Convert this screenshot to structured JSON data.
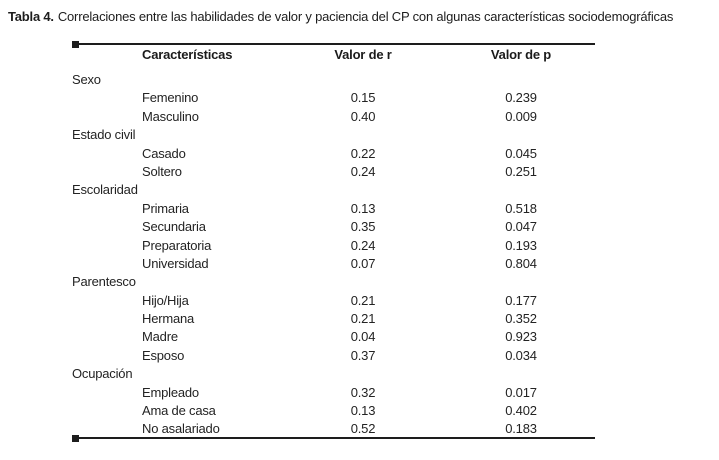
{
  "title": {
    "label": "Tabla 4.",
    "text": "Correlaciones entre las habilidades de valor y paciencia del CP con algunas características sociodemográficas"
  },
  "table": {
    "columns": [
      "Características",
      "Valor de r",
      "Valor de p"
    ],
    "groups": [
      {
        "name": "Sexo",
        "rows": [
          {
            "label": "Femenino",
            "r": "0.15",
            "p": "0.239"
          },
          {
            "label": "Masculino",
            "r": "0.40",
            "p": "0.009"
          }
        ]
      },
      {
        "name": "Estado civil",
        "rows": [
          {
            "label": "Casado",
            "r": "0.22",
            "p": "0.045"
          },
          {
            "label": "Soltero",
            "r": "0.24",
            "p": "0.251"
          }
        ]
      },
      {
        "name": "Escolaridad",
        "rows": [
          {
            "label": "Primaria",
            "r": "0.13",
            "p": "0.518"
          },
          {
            "label": "Secundaria",
            "r": "0.35",
            "p": "0.047"
          },
          {
            "label": "Preparatoria",
            "r": "0.24",
            "p": "0.193"
          },
          {
            "label": "Universidad",
            "r": "0.07",
            "p": "0.804"
          }
        ]
      },
      {
        "name": "Parentesco",
        "rows": [
          {
            "label": "Hijo/Hija",
            "r": "0.21",
            "p": "0.177"
          },
          {
            "label": "Hermana",
            "r": "0.21",
            "p": "0.352"
          },
          {
            "label": "Madre",
            "r": "0.04",
            "p": "0.923"
          },
          {
            "label": "Esposo",
            "r": "0.37",
            "p": "0.034"
          }
        ]
      },
      {
        "name": "Ocupación",
        "rows": [
          {
            "label": "Empleado",
            "r": "0.32",
            "p": "0.017"
          },
          {
            "label": "Ama de casa",
            "r": "0.13",
            "p": "0.402"
          },
          {
            "label": "No asalariado",
            "r": "0.52",
            "p": "0.183"
          }
        ]
      }
    ]
  },
  "colors": {
    "background": "#ffffff",
    "text": "#232323",
    "rule": "#1d1d1d"
  }
}
